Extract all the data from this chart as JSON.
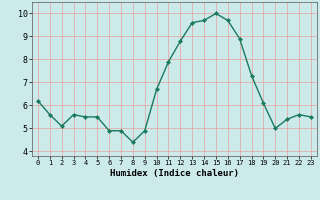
{
  "x": [
    0,
    1,
    2,
    3,
    4,
    5,
    6,
    7,
    8,
    9,
    10,
    11,
    12,
    13,
    14,
    15,
    16,
    17,
    18,
    19,
    20,
    21,
    22,
    23
  ],
  "y": [
    6.2,
    5.6,
    5.1,
    5.6,
    5.5,
    5.5,
    4.9,
    4.9,
    4.4,
    4.9,
    6.7,
    7.9,
    8.8,
    9.6,
    9.7,
    10.0,
    9.7,
    8.9,
    7.3,
    6.1,
    5.0,
    5.4,
    5.6,
    5.5
  ],
  "xlabel": "Humidex (Indice chaleur)",
  "ylim": [
    3.8,
    10.5
  ],
  "xlim": [
    -0.5,
    23.5
  ],
  "yticks": [
    4,
    5,
    6,
    7,
    8,
    9,
    10
  ],
  "xticks": [
    0,
    1,
    2,
    3,
    4,
    5,
    6,
    7,
    8,
    9,
    10,
    11,
    12,
    13,
    14,
    15,
    16,
    17,
    18,
    19,
    20,
    21,
    22,
    23
  ],
  "xtick_labels": [
    "0",
    "1",
    "2",
    "3",
    "4",
    "5",
    "6",
    "7",
    "8",
    "9",
    "10",
    "11",
    "12",
    "13",
    "14",
    "15",
    "16",
    "17",
    "18",
    "19",
    "20",
    "21",
    "22",
    "23"
  ],
  "line_color": "#1a7a5e",
  "marker_color": "#1a7a5e",
  "bg_color": "#cceaea",
  "grid_color": "#e8a0a0",
  "xlabel_fontsize": 6.5,
  "xtick_fontsize": 5.0,
  "ytick_fontsize": 6.0
}
